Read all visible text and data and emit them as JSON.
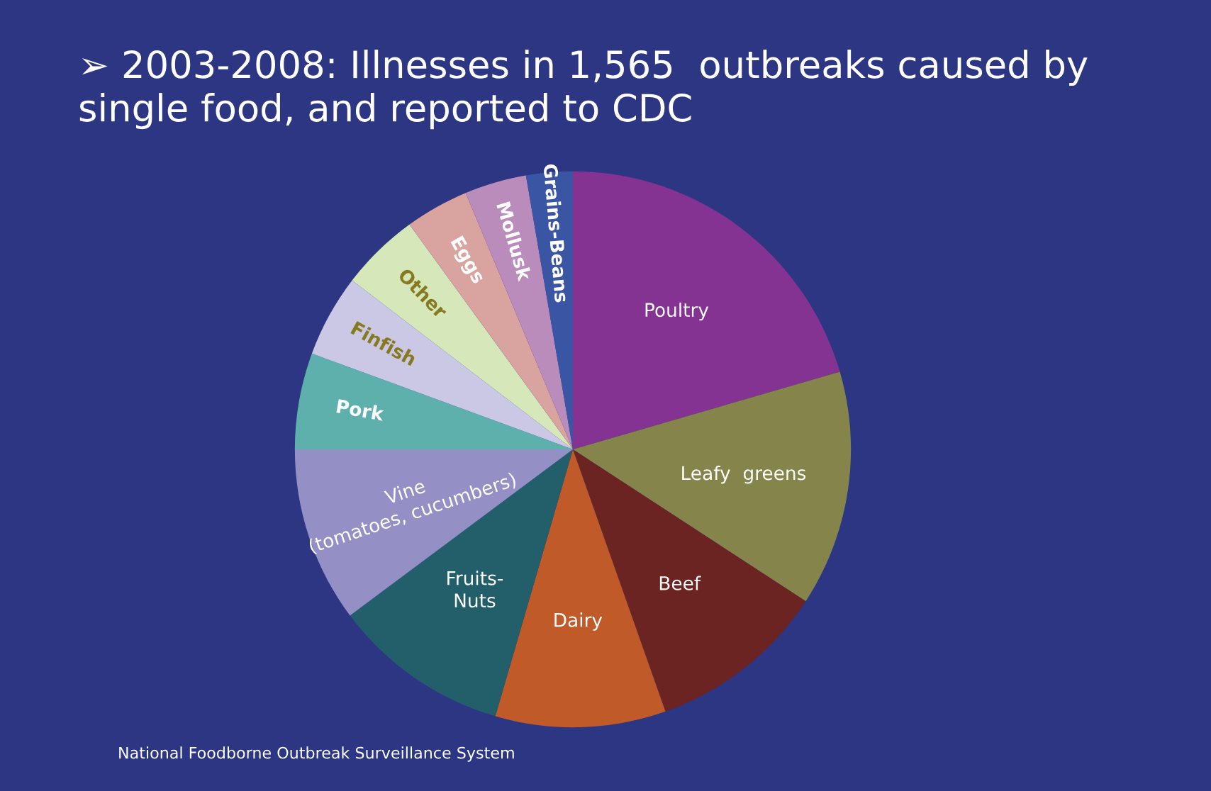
{
  "chart_data": {
    "type": "pie",
    "title": "➢ 2003-2008: Illnesses in 1,565  outbreaks caused by single food, and reported to CDC",
    "categories": [
      "Poultry",
      "Leafy  greens",
      "Beef",
      "Dairy",
      "Fruits-\nNuts",
      "Vine\n(tomatoes, cucumbers)",
      "Pork",
      "Finfish",
      "Other",
      "Eggs",
      "Mollusk",
      "Grains-Beans"
    ],
    "values": [
      20.5,
      13.7,
      10.4,
      9.9,
      10.3,
      10.2,
      5.6,
      4.8,
      4.6,
      3.7,
      3.6,
      2.7
    ],
    "colors": [
      "#843393",
      "#85844a",
      "#6b2422",
      "#c05a28",
      "#235f6a",
      "#9490c6",
      "#5eb0ad",
      "#cbc8e6",
      "#d6e7b9",
      "#d9a3a0",
      "#b98cbc",
      "#3a55a4"
    ],
    "annotations": [
      "National Foodborne Outbreak Surveillance System"
    ],
    "legend": false
  }
}
